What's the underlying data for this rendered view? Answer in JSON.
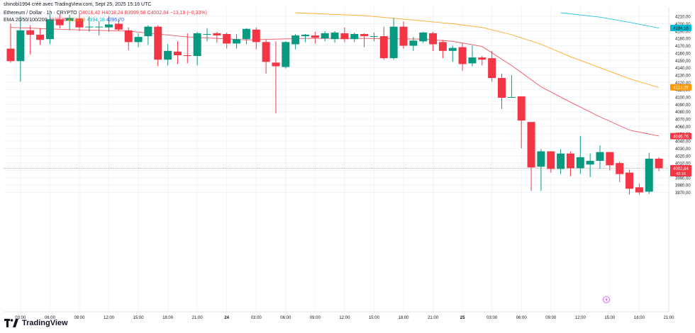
{
  "header": {
    "created_by": "shinobi1994 créé avec TradingView.com, Sept 25, 2025 15:16 UTC",
    "symbol": "Ethereum / Dollar · 1h · CRYPTO",
    "open": "O4016,42",
    "high": "H4018,24",
    "low": "B3999,58",
    "close": "C4002,84",
    "change": "−13,18 (−0,33%)",
    "ema_label": "EMA 20/50/100/200",
    "ema_values": [
      "4046,76",
      "4113,29",
      "4194,18",
      "4295,70"
    ]
  },
  "brand": {
    "name": "TradingView"
  },
  "colors": {
    "up": "#089981",
    "down": "#f23645",
    "ema20": "#f23645",
    "ema50": "#ff9800",
    "ema100": "#00bcd4",
    "ema200": "#2962ff",
    "grid": "#f0f3fa",
    "axis_text": "#131722"
  },
  "chart_data": {
    "type": "candlestick",
    "y_axis_position": "right",
    "ylim": [
      3962,
      4215
    ],
    "y_ticks": [
      3970,
      3980,
      3990,
      4000,
      4010,
      4020,
      4030,
      4040,
      4050,
      4060,
      4070,
      4080,
      4090,
      4100,
      4110,
      4120,
      4130,
      4140,
      4150,
      4160,
      4170,
      4180,
      4190,
      4200,
      4210
    ],
    "x_tick_labels": [
      "03:00",
      "06:00",
      "09:00",
      "12:00",
      "15:00",
      "18:00",
      "21:00",
      "24",
      "03:00",
      "06:00",
      "09:00",
      "12:00",
      "15:00",
      "18:00",
      "21:00",
      "25",
      "03:00",
      "06:00",
      "09:00",
      "12:00",
      "15:00",
      "18:00",
      "21:00"
    ],
    "x_tick_bar_index": [
      1,
      4,
      7,
      10,
      13,
      16,
      19,
      22,
      25,
      28,
      31,
      34,
      37,
      40,
      43,
      46,
      49,
      52,
      55,
      58,
      61,
      64,
      67
    ],
    "candles": [
      {
        "o": 4166,
        "h": 4200,
        "l": 4147,
        "c": 4149
      },
      {
        "o": 4149,
        "h": 4210,
        "l": 4121,
        "c": 4191
      },
      {
        "o": 4191,
        "h": 4198,
        "l": 4158,
        "c": 4185
      },
      {
        "o": 4185,
        "h": 4194,
        "l": 4171,
        "c": 4178
      },
      {
        "o": 4179,
        "h": 4213,
        "l": 4172,
        "c": 4206
      },
      {
        "o": 4206,
        "h": 4213,
        "l": 4194,
        "c": 4198
      },
      {
        "o": 4204,
        "h": 4212,
        "l": 4191,
        "c": 4208
      },
      {
        "o": 4207,
        "h": 4213,
        "l": 4190,
        "c": 4195
      },
      {
        "o": 4196,
        "h": 4210,
        "l": 4189,
        "c": 4196
      },
      {
        "o": 4196,
        "h": 4203,
        "l": 4184,
        "c": 4196
      },
      {
        "o": 4195,
        "h": 4210,
        "l": 4189,
        "c": 4199
      },
      {
        "o": 4200,
        "h": 4207,
        "l": 4190,
        "c": 4192
      },
      {
        "o": 4191,
        "h": 4195,
        "l": 4164,
        "c": 4175
      },
      {
        "o": 4175,
        "h": 4187,
        "l": 4168,
        "c": 4182
      },
      {
        "o": 4183,
        "h": 4198,
        "l": 4171,
        "c": 4196
      },
      {
        "o": 4196,
        "h": 4198,
        "l": 4142,
        "c": 4151
      },
      {
        "o": 4151,
        "h": 4172,
        "l": 4143,
        "c": 4163
      },
      {
        "o": 4162,
        "h": 4176,
        "l": 4145,
        "c": 4157
      },
      {
        "o": 4157,
        "h": 4187,
        "l": 4146,
        "c": 4156
      },
      {
        "o": 4156,
        "h": 4189,
        "l": 4143,
        "c": 4187
      },
      {
        "o": 4186,
        "h": 4194,
        "l": 4176,
        "c": 4186
      },
      {
        "o": 4187,
        "h": 4189,
        "l": 4174,
        "c": 4184
      },
      {
        "o": 4186,
        "h": 4188,
        "l": 4166,
        "c": 4173
      },
      {
        "o": 4173,
        "h": 4186,
        "l": 4166,
        "c": 4179
      },
      {
        "o": 4179,
        "h": 4194,
        "l": 4172,
        "c": 4193
      },
      {
        "o": 4192,
        "h": 4195,
        "l": 4165,
        "c": 4175
      },
      {
        "o": 4175,
        "h": 4178,
        "l": 4132,
        "c": 4148
      },
      {
        "o": 4147,
        "h": 4176,
        "l": 4078,
        "c": 4142
      },
      {
        "o": 4141,
        "h": 4176,
        "l": 4139,
        "c": 4175
      },
      {
        "o": 4172,
        "h": 4186,
        "l": 4165,
        "c": 4184
      },
      {
        "o": 4183,
        "h": 4186,
        "l": 4175,
        "c": 4185
      },
      {
        "o": 4184,
        "h": 4189,
        "l": 4173,
        "c": 4181
      },
      {
        "o": 4180,
        "h": 4190,
        "l": 4176,
        "c": 4187
      },
      {
        "o": 4179,
        "h": 4190,
        "l": 4174,
        "c": 4188
      },
      {
        "o": 4187,
        "h": 4195,
        "l": 4175,
        "c": 4179
      },
      {
        "o": 4179,
        "h": 4188,
        "l": 4175,
        "c": 4186
      },
      {
        "o": 4186,
        "h": 4187,
        "l": 4168,
        "c": 4183
      },
      {
        "o": 4183,
        "h": 4188,
        "l": 4176,
        "c": 4183
      },
      {
        "o": 4183,
        "h": 4196,
        "l": 4151,
        "c": 4153
      },
      {
        "o": 4153,
        "h": 4208,
        "l": 4151,
        "c": 4196
      },
      {
        "o": 4196,
        "h": 4203,
        "l": 4166,
        "c": 4170
      },
      {
        "o": 4170,
        "h": 4182,
        "l": 4163,
        "c": 4177
      },
      {
        "o": 4176,
        "h": 4189,
        "l": 4174,
        "c": 4188
      },
      {
        "o": 4187,
        "h": 4189,
        "l": 4163,
        "c": 4172
      },
      {
        "o": 4175,
        "h": 4178,
        "l": 4153,
        "c": 4163
      },
      {
        "o": 4163,
        "h": 4170,
        "l": 4148,
        "c": 4167
      },
      {
        "o": 4168,
        "h": 4174,
        "l": 4136,
        "c": 4145
      },
      {
        "o": 4146,
        "h": 4170,
        "l": 4142,
        "c": 4154
      },
      {
        "o": 4154,
        "h": 4156,
        "l": 4143,
        "c": 4151
      },
      {
        "o": 4153,
        "h": 4163,
        "l": 4121,
        "c": 4126
      },
      {
        "o": 4126,
        "h": 4132,
        "l": 4084,
        "c": 4099
      },
      {
        "o": 4100,
        "h": 4130,
        "l": 4099,
        "c": 4100
      },
      {
        "o": 4101,
        "h": 4101,
        "l": 4030,
        "c": 4068
      },
      {
        "o": 4066,
        "h": 4066,
        "l": 3972,
        "c": 4004
      },
      {
        "o": 4005,
        "h": 4029,
        "l": 3972,
        "c": 4026
      },
      {
        "o": 4026,
        "h": 4026,
        "l": 3997,
        "c": 4002
      },
      {
        "o": 4002,
        "h": 4029,
        "l": 3995,
        "c": 4023
      },
      {
        "o": 4023,
        "h": 4026,
        "l": 3992,
        "c": 4003
      },
      {
        "o": 4003,
        "h": 4047,
        "l": 3995,
        "c": 4018
      },
      {
        "o": 4008,
        "h": 4023,
        "l": 3991,
        "c": 4013
      },
      {
        "o": 4013,
        "h": 4034,
        "l": 4002,
        "c": 4025
      },
      {
        "o": 4025,
        "h": 4025,
        "l": 4000,
        "c": 4007
      },
      {
        "o": 4010,
        "h": 4012,
        "l": 3984,
        "c": 3995
      },
      {
        "o": 3997,
        "h": 4001,
        "l": 3967,
        "c": 3975
      },
      {
        "o": 3977,
        "h": 3982,
        "l": 3967,
        "c": 3970
      },
      {
        "o": 3971,
        "h": 4024,
        "l": 3968,
        "c": 4016
      },
      {
        "o": 4016,
        "h": 4018,
        "l": 3999,
        "c": 4003
      }
    ],
    "series": [
      {
        "name": "EMA 20",
        "color": "#f23645",
        "x": [
          0,
          6,
          12,
          18,
          24,
          30,
          36,
          42,
          45,
          48,
          51,
          54,
          57,
          60,
          63,
          66
        ],
        "values": [
          4195,
          4192,
          4190,
          4182,
          4178,
          4180,
          4180,
          4179,
          4176,
          4169,
          4143,
          4114,
          4093,
          4073,
          4055,
          4047
        ]
      },
      {
        "name": "EMA 50",
        "color": "#ff9800",
        "x": [
          29,
          36,
          41,
          45,
          48,
          51,
          54,
          57,
          60,
          63,
          66
        ],
        "values": [
          4215,
          4211,
          4205,
          4200,
          4195,
          4185,
          4172,
          4155,
          4140,
          4125,
          4113
        ]
      },
      {
        "name": "EMA 100",
        "color": "#00bcd4",
        "x": [
          56,
          60,
          63,
          66
        ],
        "values": [
          4215,
          4209,
          4202,
          4194
        ]
      }
    ],
    "price_line": 4002.84,
    "price_labels": [
      {
        "text": "4194,18",
        "value": 4194.18,
        "bg": "#00bcd4",
        "fg": "#131722"
      },
      {
        "text": "4113,29",
        "value": 4113.29,
        "bg": "#ff9800",
        "fg": "#ffffff"
      },
      {
        "text": "4046,76",
        "value": 4046.76,
        "bg": "#f23645",
        "fg": "#ffffff"
      },
      {
        "text": "4002,84",
        "value": 4002.84,
        "bg": "#f23645",
        "fg": "#ffffff",
        "sub": "43:16"
      }
    ]
  }
}
